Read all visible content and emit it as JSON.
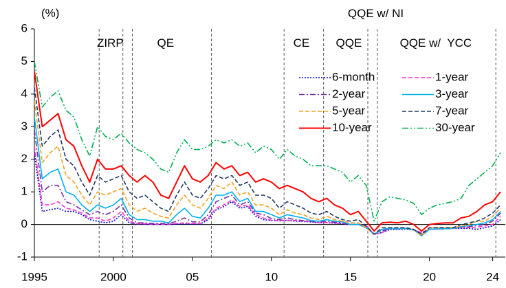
{
  "chart_data": {
    "type": "line",
    "y_label": "(%)",
    "x": [
      1995.0,
      1995.5,
      1996.0,
      1996.5,
      1997.0,
      1997.5,
      1998.0,
      1998.5,
      1999.0,
      1999.5,
      2000.0,
      2000.5,
      2001.0,
      2001.5,
      2002.0,
      2002.5,
      2003.0,
      2003.5,
      2004.0,
      2004.5,
      2005.0,
      2005.5,
      2006.0,
      2006.5,
      2007.0,
      2007.5,
      2008.0,
      2008.5,
      2009.0,
      2009.5,
      2010.0,
      2010.5,
      2011.0,
      2011.5,
      2012.0,
      2012.5,
      2013.0,
      2013.5,
      2014.0,
      2014.5,
      2015.0,
      2015.5,
      2016.0,
      2016.5,
      2017.0,
      2017.5,
      2018.0,
      2018.5,
      2019.0,
      2019.5,
      2020.0,
      2020.5,
      2021.0,
      2021.5,
      2022.0,
      2022.5,
      2023.0,
      2023.5,
      2024.0,
      2024.5
    ],
    "series": [
      {
        "name": "6-month",
        "color": "#0000cc",
        "style": "dotted",
        "values": [
          2.2,
          0.4,
          0.45,
          0.5,
          0.4,
          0.4,
          0.3,
          0.15,
          0.1,
          0.05,
          0.1,
          0.3,
          0.05,
          0.01,
          0.01,
          0.0,
          0.0,
          0.0,
          0.01,
          0.02,
          0.01,
          0.01,
          0.15,
          0.45,
          0.55,
          0.7,
          0.5,
          0.55,
          0.25,
          0.15,
          0.12,
          0.11,
          0.12,
          0.1,
          0.09,
          0.08,
          0.05,
          0.05,
          0.04,
          0.02,
          0.0,
          0.0,
          -0.05,
          -0.3,
          -0.25,
          -0.15,
          -0.15,
          -0.14,
          -0.17,
          -0.25,
          -0.15,
          -0.14,
          -0.13,
          -0.12,
          -0.12,
          -0.12,
          -0.15,
          -0.1,
          -0.05,
          0.15
        ]
      },
      {
        "name": "1-year",
        "color": "#ff33cc",
        "style": "dashed",
        "values": [
          2.4,
          0.6,
          0.6,
          0.7,
          0.5,
          0.45,
          0.35,
          0.2,
          0.2,
          0.1,
          0.2,
          0.4,
          0.1,
          0.02,
          0.02,
          0.01,
          0.01,
          0.01,
          0.03,
          0.05,
          0.03,
          0.03,
          0.2,
          0.5,
          0.6,
          0.75,
          0.55,
          0.6,
          0.3,
          0.2,
          0.13,
          0.12,
          0.13,
          0.12,
          0.1,
          0.09,
          0.05,
          0.06,
          0.05,
          0.03,
          0.0,
          0.0,
          -0.05,
          -0.3,
          -0.25,
          -0.12,
          -0.14,
          -0.12,
          -0.16,
          -0.25,
          -0.15,
          -0.14,
          -0.13,
          -0.12,
          -0.1,
          -0.1,
          -0.08,
          -0.05,
          0.0,
          0.25
        ]
      },
      {
        "name": "2-year",
        "color": "#7030a0",
        "style": "dashdot",
        "values": [
          2.9,
          1.0,
          1.2,
          1.2,
          0.7,
          0.6,
          0.45,
          0.3,
          0.4,
          0.3,
          0.4,
          0.6,
          0.2,
          0.05,
          0.05,
          0.03,
          0.03,
          0.02,
          0.1,
          0.2,
          0.08,
          0.08,
          0.3,
          0.7,
          0.8,
          0.9,
          0.6,
          0.7,
          0.35,
          0.3,
          0.18,
          0.15,
          0.2,
          0.15,
          0.12,
          0.1,
          0.07,
          0.1,
          0.07,
          0.05,
          0.0,
          0.0,
          -0.1,
          -0.3,
          -0.2,
          -0.12,
          -0.14,
          -0.12,
          -0.16,
          -0.3,
          -0.15,
          -0.14,
          -0.13,
          -0.12,
          -0.08,
          -0.07,
          -0.03,
          0.0,
          0.1,
          0.35
        ]
      },
      {
        "name": "3-year",
        "color": "#00b0f0",
        "style": "solid",
        "values": [
          3.3,
          1.4,
          1.6,
          1.7,
          1.0,
          0.9,
          0.6,
          0.4,
          0.6,
          0.5,
          0.6,
          0.8,
          0.3,
          0.15,
          0.15,
          0.1,
          0.1,
          0.05,
          0.3,
          0.5,
          0.25,
          0.2,
          0.5,
          0.9,
          0.9,
          1.0,
          0.7,
          0.8,
          0.4,
          0.4,
          0.3,
          0.2,
          0.3,
          0.25,
          0.2,
          0.12,
          0.1,
          0.15,
          0.1,
          0.08,
          0.0,
          0.0,
          -0.1,
          -0.3,
          -0.15,
          -0.12,
          -0.13,
          -0.12,
          -0.16,
          -0.35,
          -0.15,
          -0.14,
          -0.13,
          -0.12,
          -0.07,
          -0.03,
          0.0,
          0.05,
          0.15,
          0.4
        ]
      },
      {
        "name": "5-year",
        "color": "#f4a020",
        "style": "dashed",
        "values": [
          3.8,
          1.9,
          2.2,
          2.4,
          1.5,
          1.3,
          0.9,
          0.6,
          1.0,
          0.9,
          1.0,
          1.1,
          0.6,
          0.4,
          0.5,
          0.35,
          0.25,
          0.2,
          0.6,
          0.9,
          0.6,
          0.5,
          0.8,
          1.2,
          1.1,
          1.3,
          0.9,
          1.0,
          0.6,
          0.6,
          0.5,
          0.3,
          0.45,
          0.35,
          0.3,
          0.2,
          0.15,
          0.25,
          0.15,
          0.1,
          0.05,
          0.05,
          -0.1,
          -0.3,
          -0.1,
          -0.1,
          -0.1,
          -0.1,
          -0.15,
          -0.35,
          -0.1,
          -0.1,
          -0.1,
          -0.1,
          -0.05,
          0.0,
          0.1,
          0.1,
          0.25,
          0.5
        ]
      },
      {
        "name": "7-year",
        "color": "#1f3864",
        "style": "dashed",
        "values": [
          4.2,
          2.4,
          2.7,
          2.9,
          2.0,
          1.8,
          1.3,
          0.9,
          1.5,
          1.3,
          1.4,
          1.5,
          1.0,
          0.8,
          0.9,
          0.7,
          0.5,
          0.4,
          0.9,
          1.3,
          0.9,
          0.8,
          1.1,
          1.5,
          1.4,
          1.5,
          1.2,
          1.3,
          0.9,
          0.9,
          0.8,
          0.5,
          0.7,
          0.6,
          0.5,
          0.35,
          0.3,
          0.4,
          0.25,
          0.15,
          0.1,
          0.15,
          -0.05,
          -0.3,
          -0.1,
          -0.1,
          -0.1,
          -0.1,
          -0.15,
          -0.3,
          -0.1,
          -0.1,
          -0.1,
          -0.1,
          0.0,
          0.05,
          0.1,
          0.2,
          0.35,
          0.6
        ]
      },
      {
        "name": "10-year",
        "color": "#ff0000",
        "style": "solid",
        "values": [
          4.7,
          3.0,
          3.2,
          3.4,
          2.6,
          2.4,
          1.8,
          1.3,
          2.0,
          1.7,
          1.7,
          1.8,
          1.5,
          1.3,
          1.5,
          1.3,
          0.9,
          0.8,
          1.3,
          1.8,
          1.4,
          1.3,
          1.5,
          1.9,
          1.7,
          1.8,
          1.5,
          1.6,
          1.3,
          1.4,
          1.3,
          1.1,
          1.2,
          1.1,
          1.0,
          0.8,
          0.7,
          0.8,
          0.6,
          0.5,
          0.3,
          0.4,
          0.1,
          -0.2,
          0.05,
          0.07,
          0.05,
          0.1,
          0.0,
          -0.2,
          0.0,
          0.03,
          0.05,
          0.05,
          0.2,
          0.25,
          0.4,
          0.6,
          0.7,
          1.0
        ]
      },
      {
        "name": "30-year",
        "color": "#00b050",
        "style": "dashdotdot",
        "values": [
          5.0,
          3.6,
          3.9,
          4.1,
          3.5,
          3.3,
          2.6,
          2.1,
          3.0,
          2.7,
          2.6,
          2.8,
          2.5,
          2.3,
          2.2,
          2.0,
          1.7,
          1.6,
          2.2,
          2.6,
          2.3,
          2.3,
          2.4,
          2.6,
          2.5,
          2.6,
          2.4,
          2.5,
          2.2,
          2.4,
          2.3,
          2.0,
          2.3,
          2.1,
          2.0,
          1.8,
          1.8,
          1.8,
          1.7,
          1.6,
          1.3,
          1.5,
          1.2,
          0.1,
          0.7,
          0.85,
          0.8,
          0.75,
          0.65,
          0.3,
          0.5,
          0.6,
          0.65,
          0.7,
          0.8,
          1.2,
          1.4,
          1.6,
          1.8,
          2.2
        ]
      }
    ],
    "xlim": [
      1995,
      2024.8
    ],
    "xticks": [
      1995,
      2000,
      {
        "value": 2005,
        "label": "05"
      },
      {
        "value": 2010,
        "label": "10"
      },
      {
        "value": 2015,
        "label": "15"
      },
      {
        "value": 2020,
        "label": "20"
      },
      {
        "value": 2024,
        "label": "24"
      }
    ],
    "ylim": [
      -1,
      6
    ],
    "yticks": [
      -1,
      0,
      1,
      2,
      3,
      4,
      5,
      6
    ],
    "vlines": [
      1999.1,
      2000.6,
      2001.2,
      2006.2,
      2010.8,
      2013.3,
      2016.1,
      2016.7,
      2024.2
    ],
    "annotations": [
      {
        "text": "ZIRP",
        "x": 1999.8,
        "y": 5.55
      },
      {
        "text": "QE",
        "x": 2003.3,
        "y": 5.55
      },
      {
        "text": "CE",
        "x": 2011.9,
        "y": 5.55
      },
      {
        "text": "QQE",
        "x": 2014.9,
        "y": 5.55
      },
      {
        "text": "QQE w/ NI",
        "x": 2016.6,
        "y": 6.45
      },
      {
        "text": "QQE w/  YCC",
        "x": 2020.4,
        "y": 5.55
      }
    ],
    "legend": "upper right"
  }
}
